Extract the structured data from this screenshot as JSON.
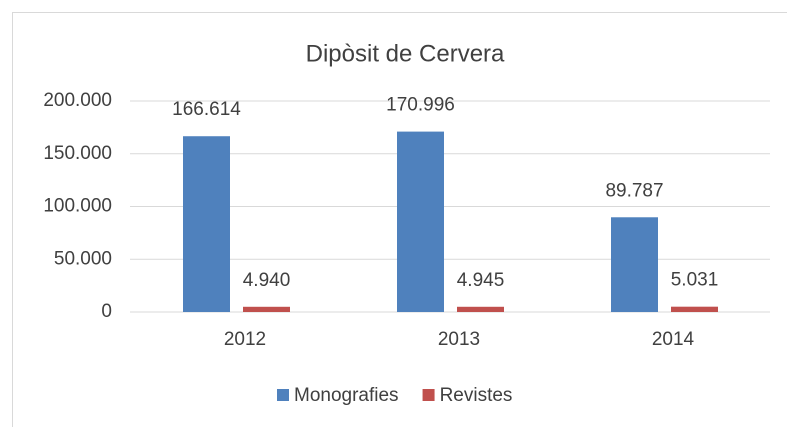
{
  "chart_data": {
    "type": "bar",
    "title": "Dipòsit de Cervera",
    "categories": [
      "2012",
      "2013",
      "2014"
    ],
    "series": [
      {
        "name": "Monografies",
        "color": "#4f81bd",
        "values": [
          166614,
          170996,
          89787
        ],
        "value_labels": [
          "166.614",
          "170.996",
          "89.787"
        ]
      },
      {
        "name": "Revistes",
        "color": "#c0504d",
        "values": [
          4940,
          4945,
          5031
        ],
        "value_labels": [
          "4.940",
          "4.945",
          "5.031"
        ]
      }
    ],
    "ylim": [
      0,
      200000
    ],
    "yticks": [
      0,
      {
        "value": 50000,
        "label": "50.000"
      },
      {
        "value": 100000,
        "label": "100.000"
      },
      {
        "value": 150000,
        "label": "150.000"
      },
      {
        "value": 200000,
        "label": "200.000"
      }
    ],
    "grid": true,
    "legend": "bottom"
  }
}
